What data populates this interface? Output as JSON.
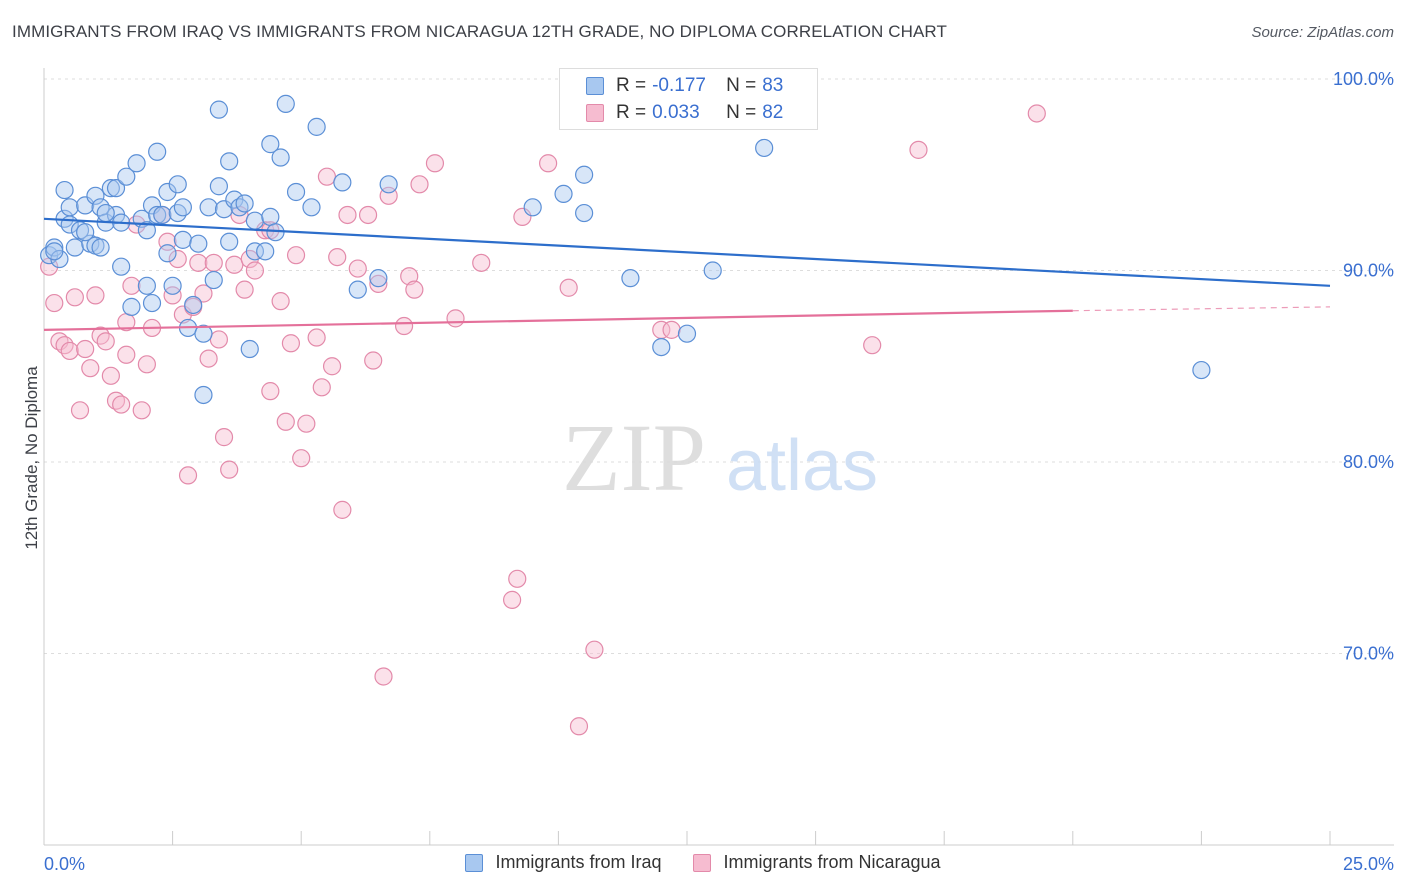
{
  "header": {
    "title": "IMMIGRANTS FROM IRAQ VS IMMIGRANTS FROM NICARAGUA 12TH GRADE, NO DIPLOMA CORRELATION CHART",
    "source": "Source: ZipAtlas.com"
  },
  "watermark": {
    "zip": "ZIP",
    "atlas": "atlas"
  },
  "legend": {
    "iraq": {
      "r_label": "R =",
      "r_value": "-0.177",
      "n_label": "N =",
      "n_value": "83"
    },
    "nicaragua": {
      "r_label": "R =",
      "r_value": "0.033",
      "n_label": "N =",
      "n_value": "82"
    }
  },
  "bottom_legend": {
    "iraq_label": "Immigrants from Iraq",
    "nicaragua_label": "Immigrants from Nicaragua"
  },
  "colors": {
    "iraq_fill": "#a8c8f0",
    "iraq_stroke": "#5b8fd6",
    "iraq_line": "#2d6ecb",
    "nicaragua_fill": "#f6bcd0",
    "nicaragua_stroke": "#e38aaa",
    "nicaragua_line": "#e4709a",
    "axis_label": "#3a6fd0",
    "grid": "#dddddd"
  },
  "chart_data": {
    "type": "scatter",
    "xlabel": "",
    "ylabel": "12th Grade, No Diploma",
    "x_range": [
      0,
      25
    ],
    "y_range": [
      60,
      100
    ],
    "x_tick_labels": [
      "0.0%",
      "25.0%"
    ],
    "y_ticks": [
      70,
      80,
      90,
      100
    ],
    "y_tick_labels": [
      "70.0%",
      "80.0%",
      "90.0%",
      "100.0%"
    ],
    "grid": true,
    "legend_position": "top-center",
    "series": [
      {
        "name": "Immigrants from Iraq",
        "trend": {
          "x": [
            0,
            25
          ],
          "y": [
            92.7,
            89.2
          ]
        },
        "points": [
          [
            0.1,
            90.8
          ],
          [
            0.2,
            91.2
          ],
          [
            0.3,
            90.6
          ],
          [
            0.4,
            92.7
          ],
          [
            0.4,
            94.2
          ],
          [
            0.5,
            92.4
          ],
          [
            0.5,
            93.3
          ],
          [
            0.6,
            91.2
          ],
          [
            0.7,
            92.1
          ],
          [
            0.8,
            93.4
          ],
          [
            0.9,
            91.4
          ],
          [
            1.0,
            93.9
          ],
          [
            1.0,
            91.3
          ],
          [
            1.1,
            93.3
          ],
          [
            1.1,
            91.2
          ],
          [
            1.2,
            92.5
          ],
          [
            1.3,
            94.3
          ],
          [
            1.4,
            92.9
          ],
          [
            1.4,
            94.3
          ],
          [
            1.5,
            92.5
          ],
          [
            1.5,
            90.2
          ],
          [
            1.6,
            94.9
          ],
          [
            1.7,
            88.1
          ],
          [
            1.8,
            95.6
          ],
          [
            1.9,
            92.7
          ],
          [
            2.0,
            92.1
          ],
          [
            2.0,
            89.2
          ],
          [
            2.1,
            93.4
          ],
          [
            2.1,
            88.3
          ],
          [
            2.2,
            92.9
          ],
          [
            2.2,
            96.2
          ],
          [
            2.3,
            92.9
          ],
          [
            2.4,
            90.9
          ],
          [
            2.4,
            94.1
          ],
          [
            2.5,
            89.2
          ],
          [
            2.6,
            94.5
          ],
          [
            2.6,
            93.0
          ],
          [
            2.7,
            91.6
          ],
          [
            2.7,
            93.3
          ],
          [
            2.8,
            87.0
          ],
          [
            2.9,
            88.2
          ],
          [
            3.0,
            91.4
          ],
          [
            3.1,
            83.5
          ],
          [
            3.1,
            86.7
          ],
          [
            3.2,
            93.3
          ],
          [
            3.3,
            89.5
          ],
          [
            3.4,
            94.4
          ],
          [
            3.4,
            98.4
          ],
          [
            3.5,
            93.2
          ],
          [
            3.6,
            95.7
          ],
          [
            3.6,
            91.5
          ],
          [
            3.7,
            93.7
          ],
          [
            3.8,
            93.3
          ],
          [
            3.9,
            93.5
          ],
          [
            4.0,
            85.9
          ],
          [
            4.1,
            91.0
          ],
          [
            4.1,
            92.6
          ],
          [
            4.3,
            91.0
          ],
          [
            4.4,
            92.8
          ],
          [
            4.4,
            96.6
          ],
          [
            4.5,
            92.0
          ],
          [
            4.6,
            95.9
          ],
          [
            4.7,
            98.7
          ],
          [
            4.9,
            94.1
          ],
          [
            5.2,
            93.3
          ],
          [
            5.3,
            97.5
          ],
          [
            5.8,
            94.6
          ],
          [
            6.1,
            89.0
          ],
          [
            6.5,
            89.6
          ],
          [
            6.7,
            94.5
          ],
          [
            9.5,
            93.3
          ],
          [
            10.1,
            94.0
          ],
          [
            10.5,
            95.0
          ],
          [
            10.5,
            93.0
          ],
          [
            11.4,
            89.6
          ],
          [
            12.0,
            86.0
          ],
          [
            12.5,
            86.7
          ],
          [
            13.0,
            90.0
          ],
          [
            14.0,
            96.4
          ],
          [
            22.5,
            84.8
          ],
          [
            0.2,
            91.0
          ],
          [
            0.8,
            92.0
          ],
          [
            1.2,
            93.0
          ]
        ]
      },
      {
        "name": "Immigrants from Nicaragua",
        "trend": {
          "x": [
            0,
            20
          ],
          "y": [
            86.9,
            87.9
          ]
        },
        "trend_dashed": {
          "x": [
            20,
            25
          ],
          "y": [
            87.9,
            88.1
          ]
        },
        "points": [
          [
            0.1,
            90.2
          ],
          [
            0.2,
            88.3
          ],
          [
            0.3,
            86.3
          ],
          [
            0.4,
            86.1
          ],
          [
            0.5,
            85.8
          ],
          [
            0.6,
            88.6
          ],
          [
            0.7,
            82.7
          ],
          [
            0.8,
            85.9
          ],
          [
            0.9,
            84.9
          ],
          [
            1.0,
            88.7
          ],
          [
            1.1,
            86.6
          ],
          [
            1.2,
            86.3
          ],
          [
            1.3,
            84.5
          ],
          [
            1.4,
            83.2
          ],
          [
            1.5,
            83.0
          ],
          [
            1.6,
            87.3
          ],
          [
            1.6,
            85.6
          ],
          [
            1.7,
            89.2
          ],
          [
            1.8,
            92.4
          ],
          [
            1.9,
            82.7
          ],
          [
            2.0,
            85.1
          ],
          [
            2.1,
            87.0
          ],
          [
            2.3,
            92.9
          ],
          [
            2.4,
            91.5
          ],
          [
            2.5,
            88.7
          ],
          [
            2.6,
            90.6
          ],
          [
            2.7,
            87.7
          ],
          [
            2.8,
            79.3
          ],
          [
            2.9,
            88.1
          ],
          [
            3.0,
            90.4
          ],
          [
            3.1,
            88.8
          ],
          [
            3.2,
            85.4
          ],
          [
            3.3,
            90.4
          ],
          [
            3.4,
            86.4
          ],
          [
            3.5,
            81.3
          ],
          [
            3.6,
            79.6
          ],
          [
            3.7,
            90.3
          ],
          [
            3.8,
            92.9
          ],
          [
            3.9,
            89.0
          ],
          [
            4.0,
            90.6
          ],
          [
            4.1,
            90.0
          ],
          [
            4.3,
            92.1
          ],
          [
            4.4,
            92.1
          ],
          [
            4.4,
            83.7
          ],
          [
            4.6,
            88.4
          ],
          [
            4.7,
            82.1
          ],
          [
            4.8,
            86.2
          ],
          [
            4.9,
            90.8
          ],
          [
            5.0,
            80.2
          ],
          [
            5.1,
            82.0
          ],
          [
            5.3,
            86.5
          ],
          [
            5.4,
            83.9
          ],
          [
            5.5,
            94.9
          ],
          [
            5.6,
            85.0
          ],
          [
            5.7,
            90.7
          ],
          [
            5.8,
            77.5
          ],
          [
            5.9,
            92.9
          ],
          [
            6.1,
            90.1
          ],
          [
            6.3,
            92.9
          ],
          [
            6.4,
            85.3
          ],
          [
            6.5,
            89.3
          ],
          [
            6.6,
            68.8
          ],
          [
            6.7,
            93.9
          ],
          [
            7.0,
            87.1
          ],
          [
            7.1,
            89.7
          ],
          [
            7.2,
            89.0
          ],
          [
            7.3,
            94.5
          ],
          [
            7.6,
            95.6
          ],
          [
            8.0,
            87.5
          ],
          [
            8.5,
            90.4
          ],
          [
            9.1,
            72.8
          ],
          [
            9.2,
            73.9
          ],
          [
            9.3,
            92.8
          ],
          [
            9.8,
            95.6
          ],
          [
            10.2,
            89.1
          ],
          [
            10.4,
            66.2
          ],
          [
            10.7,
            70.2
          ],
          [
            12.0,
            86.9
          ],
          [
            12.2,
            86.9
          ],
          [
            16.1,
            86.1
          ],
          [
            17.0,
            96.3
          ],
          [
            19.3,
            98.2
          ]
        ]
      }
    ]
  }
}
